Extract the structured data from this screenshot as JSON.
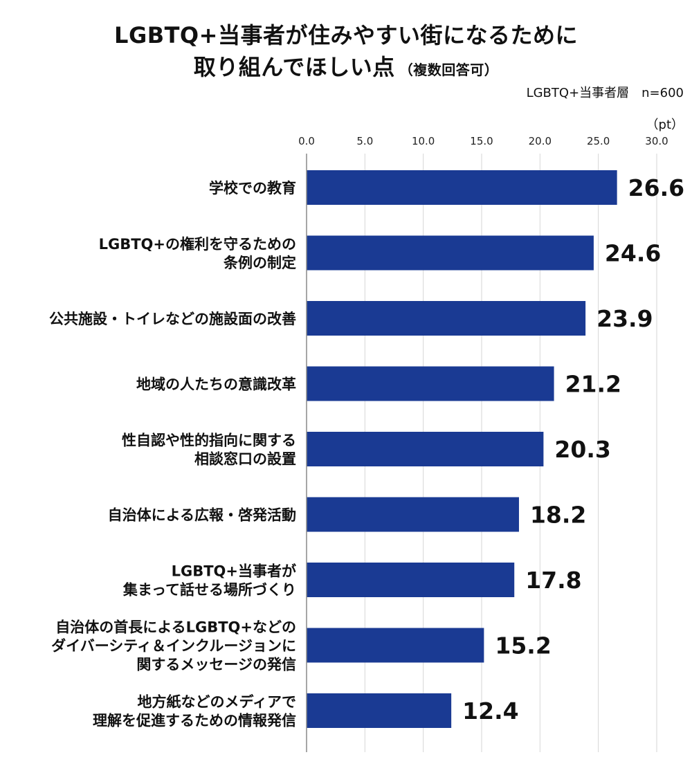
{
  "chart_data": {
    "type": "bar",
    "orientation": "horizontal",
    "title_line1": "LGBTQ+当事者が住みやすい街になるために",
    "title_line2": "取り組んでほしい点",
    "title_suffix": "（複数回答可）",
    "sample_note": "LGBTQ+当事者層　n=600",
    "unit_label": "（pt）",
    "xlim": [
      0,
      30
    ],
    "ticks": [
      0,
      5,
      10,
      15,
      20,
      25,
      30
    ],
    "tick_labels": [
      "0.0",
      "5.0",
      "10.0",
      "15.0",
      "20.0",
      "25.0",
      "30.0"
    ],
    "grid": true,
    "bar_color": "#1a3a93",
    "categories": [
      [
        "学校での教育"
      ],
      [
        "LGBTQ+の権利を守るための",
        "条例の制定"
      ],
      [
        "公共施設・トイレなどの施設面の改善"
      ],
      [
        "地域の人たちの意識改革"
      ],
      [
        "性自認や性的指向に関する",
        "相談窓口の設置"
      ],
      [
        "自治体による広報・啓発活動"
      ],
      [
        "LGBTQ+当事者が",
        "集まって話せる場所づくり"
      ],
      [
        "自治体の首長によるLGBTQ+などの",
        "ダイバーシティ＆インクルージョンに",
        "関するメッセージの発信"
      ],
      [
        "地方紙などのメディアで",
        "理解を促進するための情報発信"
      ]
    ],
    "values": [
      26.6,
      24.6,
      23.9,
      21.2,
      20.3,
      18.2,
      17.8,
      15.2,
      12.4
    ],
    "value_labels": [
      "26.6",
      "24.6",
      "23.9",
      "21.2",
      "20.3",
      "18.2",
      "17.8",
      "15.2",
      "12.4"
    ]
  }
}
